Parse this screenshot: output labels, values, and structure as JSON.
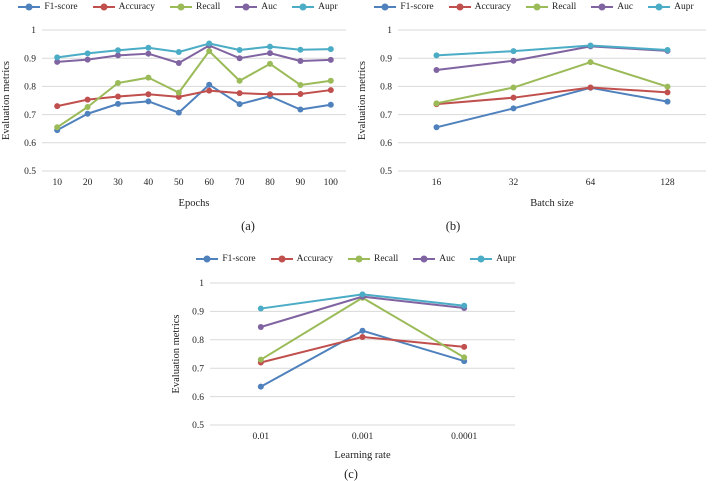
{
  "figure": {
    "ylabel": "Evaluation metrics",
    "series_names": [
      "F1-score",
      "Accuracy",
      "Recall",
      "Auc",
      "Aupr"
    ],
    "series_colors": [
      "#4F81BD",
      "#C0504D",
      "#9BBB59",
      "#8064A2",
      "#4BACC6"
    ],
    "gridline_color": "#d9d9d9"
  },
  "chart_data": [
    {
      "type": "line",
      "caption": "(a)",
      "xlabel": "Epochs",
      "ylabel": "Evaluation metrics",
      "legend_position": "top",
      "grid": true,
      "ylim": [
        0.5,
        1
      ],
      "yticks": [
        1,
        0.9,
        0.8,
        0.7,
        0.6,
        0.5
      ],
      "categories": [
        "10",
        "20",
        "30",
        "40",
        "50",
        "60",
        "70",
        "80",
        "90",
        "100"
      ],
      "series": [
        {
          "name": "F1-score",
          "color": "#4F81BD",
          "values": [
            0.645,
            0.703,
            0.738,
            0.747,
            0.707,
            0.806,
            0.737,
            0.765,
            0.718,
            0.735
          ]
        },
        {
          "name": "Accuracy",
          "color": "#C0504D",
          "values": [
            0.73,
            0.753,
            0.764,
            0.772,
            0.763,
            0.785,
            0.776,
            0.772,
            0.773,
            0.787
          ]
        },
        {
          "name": "Recall",
          "color": "#9BBB59",
          "values": [
            0.655,
            0.727,
            0.812,
            0.831,
            0.778,
            0.925,
            0.82,
            0.88,
            0.805,
            0.82
          ]
        },
        {
          "name": "Auc",
          "color": "#8064A2",
          "values": [
            0.887,
            0.895,
            0.91,
            0.916,
            0.883,
            0.945,
            0.9,
            0.918,
            0.89,
            0.894
          ]
        },
        {
          "name": "Aupr",
          "color": "#4BACC6",
          "values": [
            0.903,
            0.917,
            0.928,
            0.937,
            0.922,
            0.952,
            0.929,
            0.941,
            0.93,
            0.932
          ]
        }
      ]
    },
    {
      "type": "line",
      "caption": "(b)",
      "xlabel": "Batch size",
      "ylabel": "Evaluation metrics",
      "legend_position": "top",
      "grid": true,
      "ylim": [
        0.5,
        1
      ],
      "yticks": [
        1,
        0.9,
        0.8,
        0.7,
        0.6,
        0.5
      ],
      "categories": [
        "16",
        "32",
        "64",
        "128"
      ],
      "series": [
        {
          "name": "F1-score",
          "color": "#4F81BD",
          "values": [
            0.655,
            0.722,
            0.795,
            0.746
          ]
        },
        {
          "name": "Accuracy",
          "color": "#C0504D",
          "values": [
            0.737,
            0.76,
            0.796,
            0.779
          ]
        },
        {
          "name": "Recall",
          "color": "#9BBB59",
          "values": [
            0.74,
            0.796,
            0.886,
            0.799
          ]
        },
        {
          "name": "Auc",
          "color": "#8064A2",
          "values": [
            0.858,
            0.891,
            0.942,
            0.926
          ]
        },
        {
          "name": "Aupr",
          "color": "#4BACC6",
          "values": [
            0.91,
            0.925,
            0.945,
            0.929
          ]
        }
      ]
    },
    {
      "type": "line",
      "caption": "(c)",
      "xlabel": "Learning rate",
      "ylabel": "Evaluation metrics",
      "legend_position": "top",
      "grid": true,
      "ylim": [
        0.5,
        1
      ],
      "yticks": [
        1,
        0.9,
        0.8,
        0.7,
        0.6,
        0.5
      ],
      "categories": [
        "0.01",
        "0.001",
        "0.0001"
      ],
      "series": [
        {
          "name": "F1-score",
          "color": "#4F81BD",
          "values": [
            0.635,
            0.832,
            0.725
          ]
        },
        {
          "name": "Accuracy",
          "color": "#C0504D",
          "values": [
            0.72,
            0.81,
            0.775
          ]
        },
        {
          "name": "Recall",
          "color": "#9BBB59",
          "values": [
            0.73,
            0.948,
            0.738
          ]
        },
        {
          "name": "Auc",
          "color": "#8064A2",
          "values": [
            0.845,
            0.952,
            0.912
          ]
        },
        {
          "name": "Aupr",
          "color": "#4BACC6",
          "values": [
            0.91,
            0.96,
            0.92
          ]
        }
      ]
    }
  ]
}
